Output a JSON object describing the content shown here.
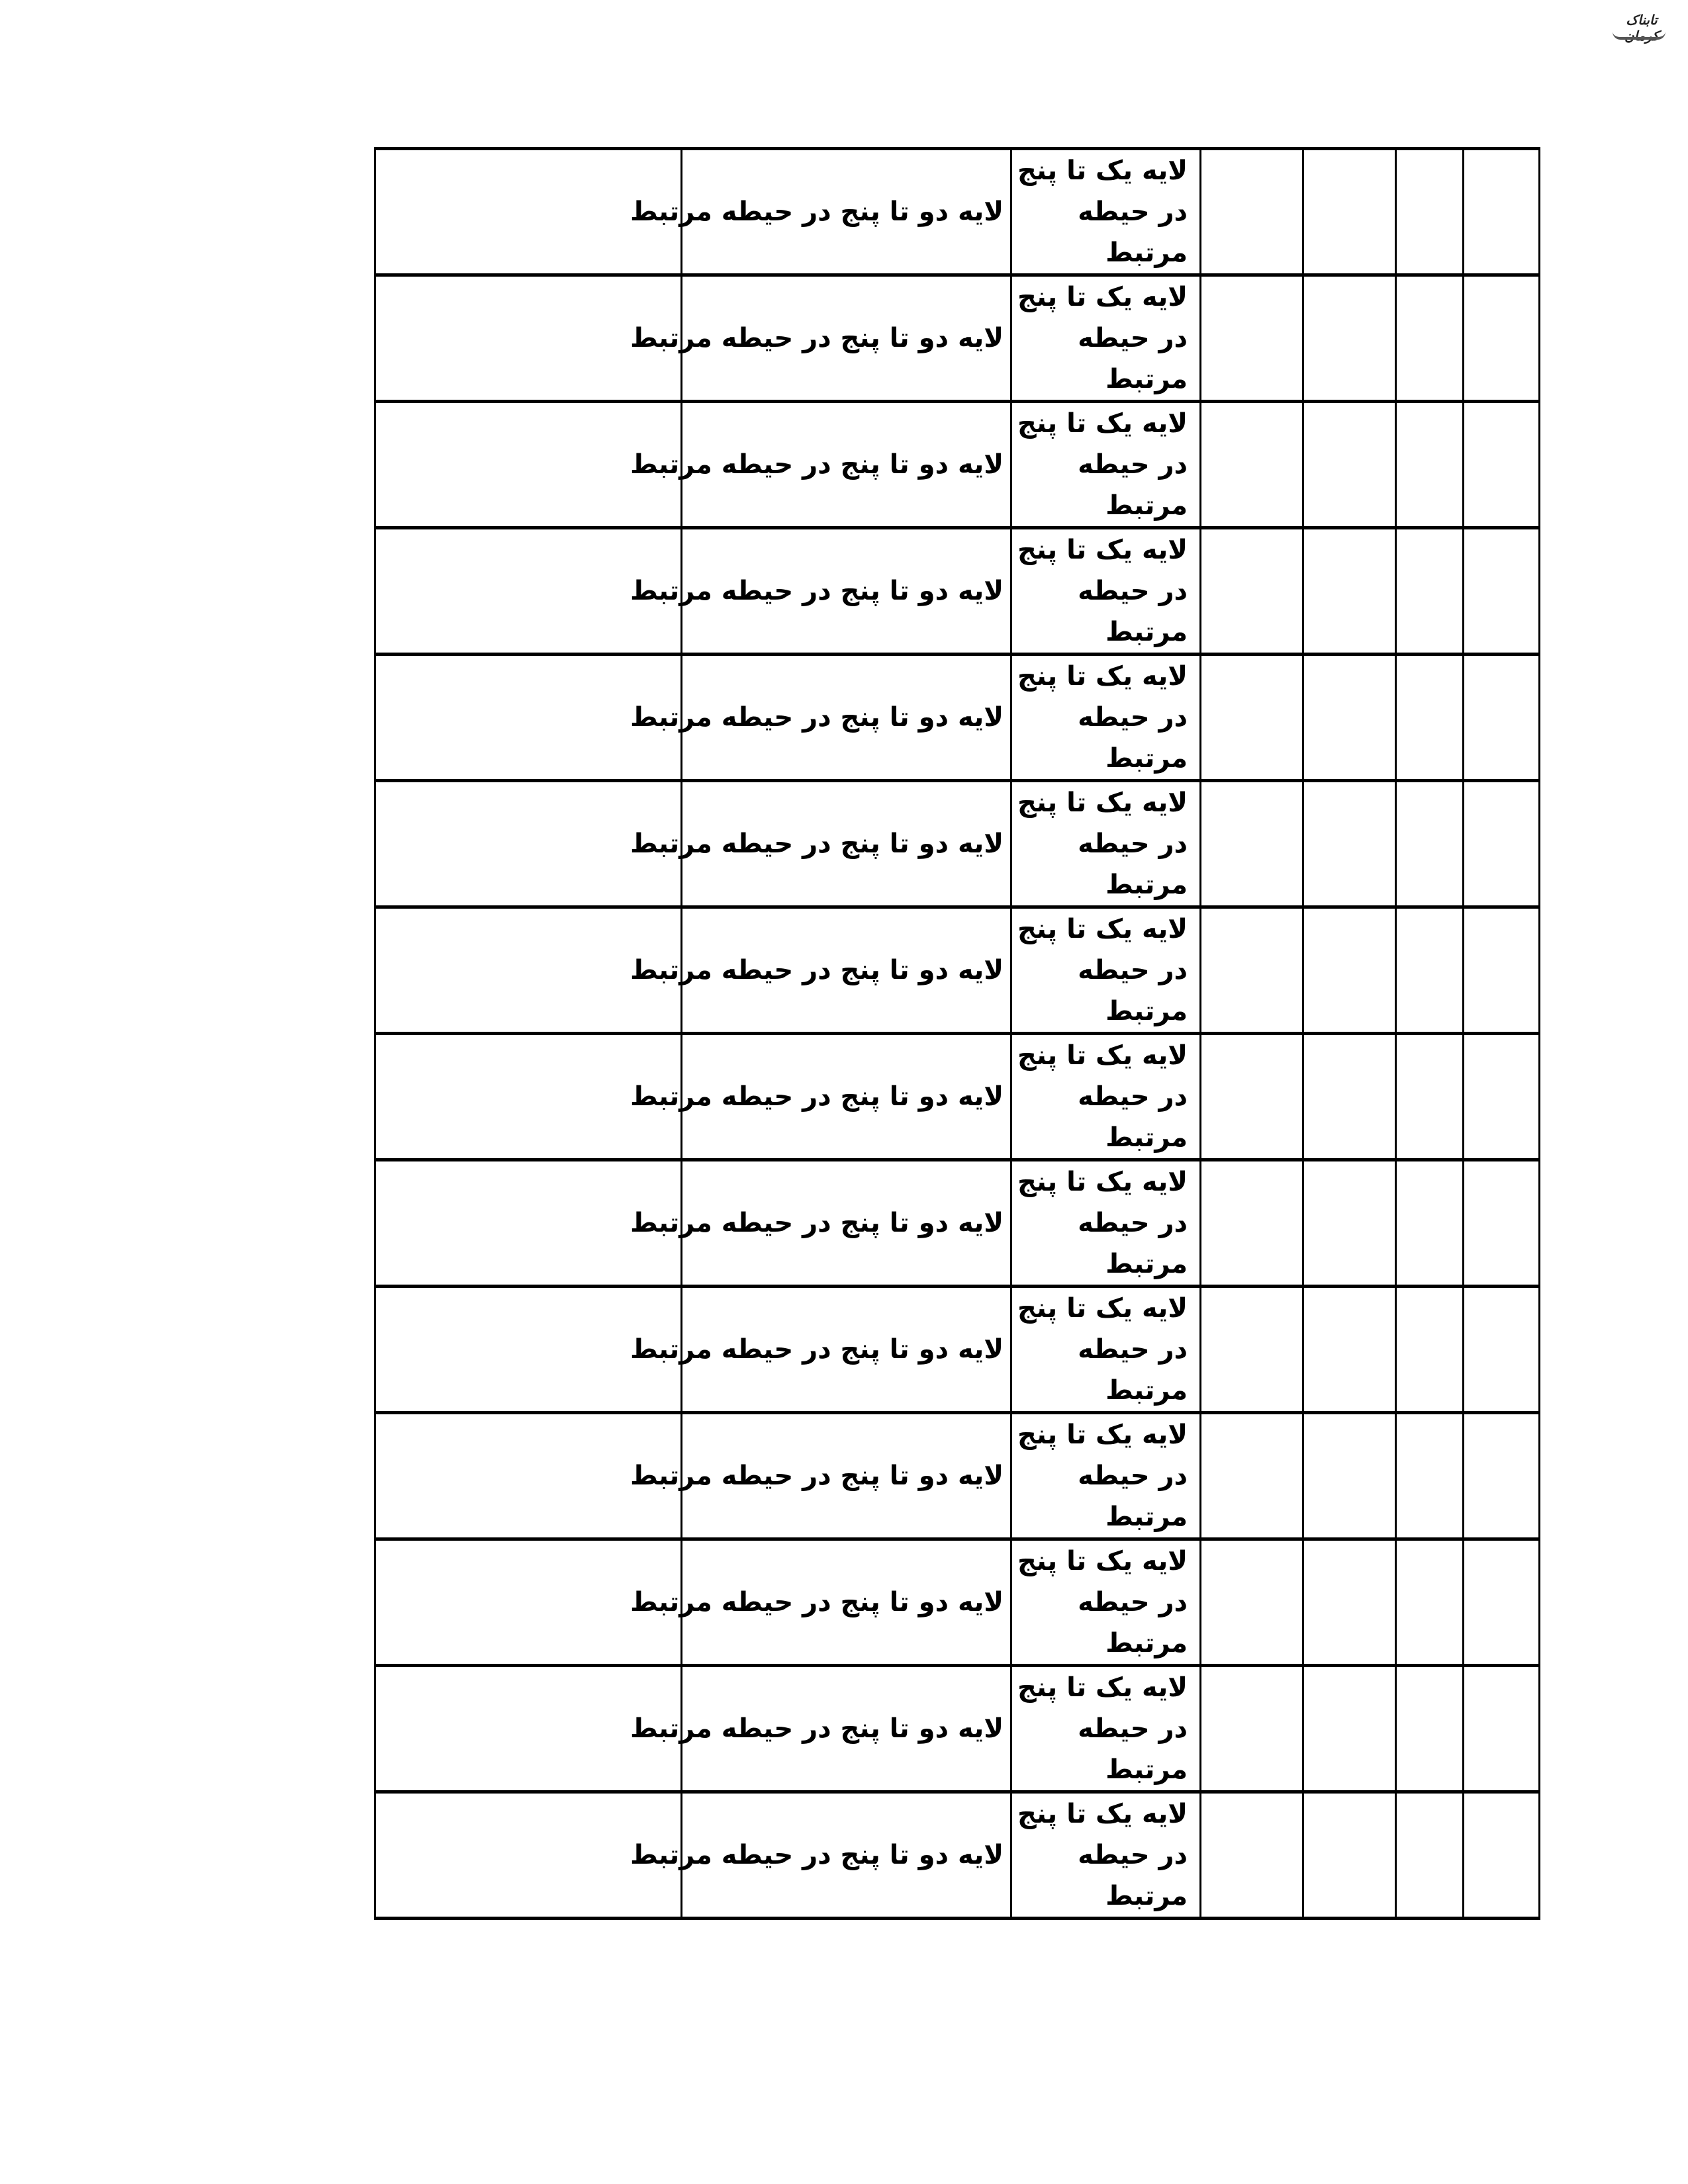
{
  "logo": {
    "text": "تابناک کرمان"
  },
  "table": {
    "rows": [
      {
        "col_layer_two": "لایه دو تا پنج در حیطه مرتبط",
        "col_layer_one": "لایه یک تا پنج در حیطه مرتبط"
      },
      {
        "col_layer_two": "لایه دو تا پنج در حیطه مرتبط",
        "col_layer_one": "لایه یک تا پنج در حیطه مرتبط"
      },
      {
        "col_layer_two": "لایه دو تا پنج در حیطه مرتبط",
        "col_layer_one": "لایه یک تا پنج در حیطه مرتبط"
      },
      {
        "col_layer_two": "لایه دو تا پنج در حیطه مرتبط",
        "col_layer_one": "لایه یک تا پنج در حیطه مرتبط"
      },
      {
        "col_layer_two": "لایه دو تا پنج در حیطه مرتبط",
        "col_layer_one": "لایه یک تا پنج در حیطه مرتبط"
      },
      {
        "col_layer_two": "لایه دو تا پنج در حیطه مرتبط",
        "col_layer_one": "لایه یک تا پنج در حیطه مرتبط"
      },
      {
        "col_layer_two": "لایه دو تا پنج در حیطه مرتبط",
        "col_layer_one": "لایه یک تا پنج در حیطه مرتبط"
      },
      {
        "col_layer_two": "لایه دو تا پنج در حیطه مرتبط",
        "col_layer_one": "لایه یک تا پنج در حیطه مرتبط"
      },
      {
        "col_layer_two": "لایه دو تا پنج در حیطه مرتبط",
        "col_layer_one": "لایه یک تا پنج در حیطه مرتبط"
      },
      {
        "col_layer_two": "لایه دو تا پنج در حیطه مرتبط",
        "col_layer_one": "لایه یک تا پنج در حیطه مرتبط"
      },
      {
        "col_layer_two": "لایه دو تا پنج در حیطه مرتبط",
        "col_layer_one": "لایه یک تا پنج در حیطه مرتبط"
      },
      {
        "col_layer_two": "لایه دو تا پنج در حیطه مرتبط",
        "col_layer_one": "لایه یک تا پنج در حیطه مرتبط"
      },
      {
        "col_layer_two": "لایه دو تا پنج در حیطه مرتبط",
        "col_layer_one": "لایه یک تا پنج در حیطه مرتبط"
      },
      {
        "col_layer_two": "لایه دو تا پنج در حیطه مرتبط",
        "col_layer_one": "لایه یک تا پنج در حیطه مرتبط"
      }
    ]
  }
}
